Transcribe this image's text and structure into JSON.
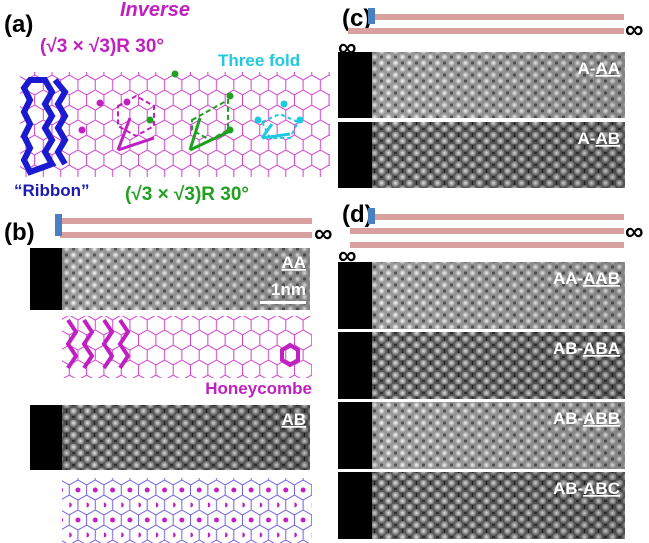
{
  "a": {
    "label": "(a)",
    "inverse": "Inverse",
    "sqrt3_top": "(√3 × √3)R 30°",
    "three_fold": "Three fold",
    "ribbon": "“Ribbon”",
    "sqrt3_bottom": "(√3 × √3)R 30°"
  },
  "b": {
    "label": "(b)",
    "infinity": "∞",
    "images": [
      {
        "label": "AA",
        "scale_bar": "1nm"
      },
      {
        "label": "AB"
      }
    ],
    "model_label": "Honeycombe"
  },
  "c": {
    "label": "(c)",
    "infinity": [
      "∞",
      "∞"
    ],
    "images": [
      {
        "prefix": "A-",
        "stack": "AA"
      },
      {
        "prefix": "A-",
        "stack": "AB"
      }
    ]
  },
  "d": {
    "label": "(d)",
    "infinity": [
      "∞",
      "∞"
    ],
    "images": [
      {
        "prefix": "AA-",
        "stack": "AAB"
      },
      {
        "prefix": "AB-",
        "stack": "ABA"
      },
      {
        "prefix": "AB-",
        "stack": "ABB"
      },
      {
        "prefix": "AB-",
        "stack": "ABC"
      }
    ]
  }
}
